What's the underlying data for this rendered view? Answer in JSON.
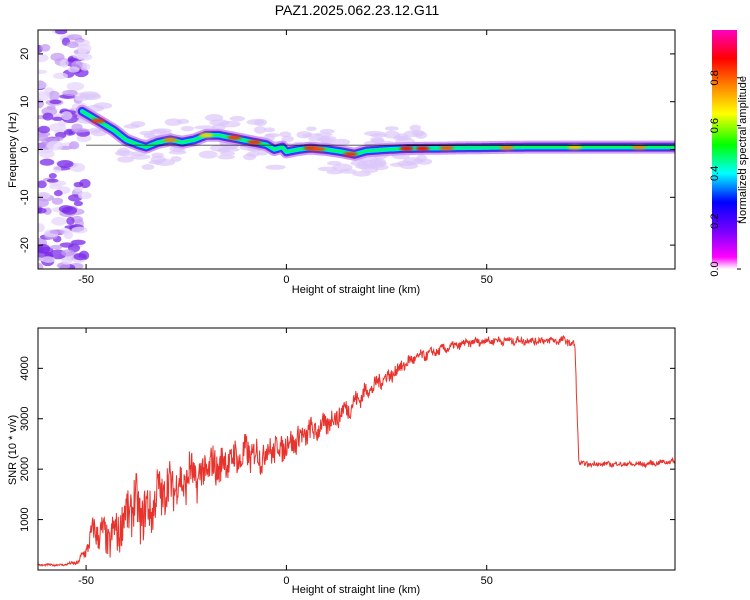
{
  "title": "PAZ1.2025.062.23.12.G11",
  "chart_data": [
    {
      "type": "heatmap",
      "title": "PAZ1.2025.062.23.12.G11",
      "xlabel": "Height of straight line (km)",
      "ylabel": "Frequency (Hz)",
      "xlim": [
        -62,
        97
      ],
      "ylim": [
        -25,
        25
      ],
      "x_ticks": [
        -50,
        0,
        50
      ],
      "y_ticks": [
        -20,
        -10,
        0,
        10,
        20
      ],
      "colorbar": {
        "label": "Normalized spectral amplitude",
        "range": [
          0,
          1
        ],
        "ticks": [
          "0.0",
          "0.2",
          "0.4",
          "0.6",
          "0.8"
        ],
        "colors": [
          "#ffffff",
          "#ff00ff",
          "#8000ff",
          "#0000ff",
          "#00ffff",
          "#00ff00",
          "#ffff00",
          "#ff8000",
          "#ff0000",
          "#ff00c0"
        ]
      },
      "ridge": {
        "x": [
          -51,
          -47,
          -43,
          -40,
          -37,
          -35,
          -32,
          -29,
          -26,
          -23,
          -20,
          -17,
          -14,
          -11,
          -8,
          -5,
          -3,
          -1,
          0,
          3,
          6,
          10,
          14,
          17,
          20,
          25,
          30,
          40,
          60,
          80,
          97
        ],
        "y": [
          8,
          6,
          4,
          2,
          1,
          0.5,
          1.5,
          2,
          1.5,
          2,
          3,
          3,
          2.5,
          2,
          1.5,
          1,
          0,
          0.5,
          -0.5,
          0,
          0.3,
          0,
          -0.5,
          -1,
          -0.3,
          0,
          0.2,
          0.3,
          0.5,
          0.5,
          0.5
        ]
      }
    },
    {
      "type": "line",
      "xlabel": "Height of straight line (km)",
      "ylabel": "SNR (10 * v/v)",
      "xlim": [
        -62,
        97
      ],
      "ylim": [
        0,
        4800
      ],
      "x_ticks": [
        -50,
        0,
        50
      ],
      "y_ticks": [
        1000,
        2000,
        3000,
        4000
      ],
      "color": "#e8322c",
      "x": [
        -62,
        -56,
        -52,
        -50,
        -48,
        -46,
        -44,
        -42,
        -40,
        -38,
        -36,
        -34,
        -32,
        -30,
        -28,
        -26,
        -24,
        -22,
        -20,
        -18,
        -16,
        -14,
        -12,
        -10,
        -8,
        -6,
        -4,
        -2,
        0,
        2,
        4,
        6,
        8,
        10,
        12,
        14,
        16,
        18,
        20,
        22,
        24,
        26,
        28,
        30,
        32,
        34,
        36,
        38,
        40,
        45,
        50,
        55,
        60,
        65,
        70,
        72,
        73,
        74,
        76,
        80,
        85,
        90,
        95,
        97
      ],
      "y": [
        100,
        100,
        150,
        400,
        800,
        700,
        600,
        800,
        1100,
        1300,
        1100,
        1200,
        1500,
        1600,
        1700,
        1700,
        1900,
        1800,
        2000,
        2050,
        2100,
        2200,
        2200,
        2300,
        2300,
        2250,
        2400,
        2400,
        2500,
        2550,
        2650,
        2750,
        2800,
        2900,
        3000,
        3150,
        3250,
        3400,
        3550,
        3650,
        3800,
        3850,
        4000,
        4100,
        4200,
        4250,
        4300,
        4350,
        4400,
        4500,
        4550,
        4550,
        4550,
        4550,
        4550,
        4450,
        2150,
        2100,
        2100,
        2100,
        2100,
        2100,
        2150,
        2150
      ],
      "noise_amplitude": [
        20,
        20,
        40,
        150,
        300,
        350,
        400,
        450,
        500,
        550,
        550,
        500,
        500,
        500,
        450,
        450,
        450,
        420,
        400,
        400,
        380,
        370,
        350,
        350,
        330,
        320,
        300,
        290,
        280,
        270,
        260,
        250,
        240,
        230,
        220,
        210,
        200,
        190,
        180,
        170,
        160,
        150,
        140,
        130,
        120,
        110,
        100,
        100,
        90,
        80,
        80,
        80,
        80,
        80,
        80,
        80,
        60,
        50,
        50,
        50,
        50,
        50,
        50,
        50
      ]
    }
  ]
}
